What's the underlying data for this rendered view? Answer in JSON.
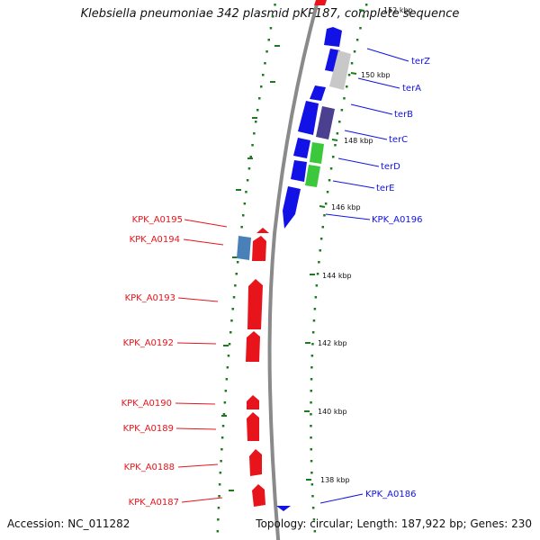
{
  "title": "Klebsiella pneumoniae 342 plasmid pKP187, complete sequence",
  "footer": {
    "accession": "Accession: NC_011282",
    "summary": "Topology: circular; Length: 187,922 bp; Genes: 230"
  },
  "colors": {
    "forward_gene": "#e8141b",
    "reverse_gene": "#1212e6",
    "backbone": "#8a8a8a",
    "gc_dots": "#1e7a1e",
    "grey_feature": "#c8c8c8",
    "purple_feature": "#4b3f8f",
    "green_feature": "#3cc83c",
    "steel_feature": "#4a80b8"
  },
  "ruler": {
    "ticks": [
      {
        "label": "152 kbp"
      },
      {
        "label": "150 kbp"
      },
      {
        "label": "148 kbp"
      },
      {
        "label": "146 kbp"
      },
      {
        "label": "144 kbp"
      },
      {
        "label": "142 kbp"
      },
      {
        "label": "140 kbp"
      },
      {
        "label": "138 kbp"
      }
    ]
  },
  "forward_labels": [
    {
      "text": "terZ"
    },
    {
      "text": "terA"
    },
    {
      "text": "terB"
    },
    {
      "text": "terC"
    },
    {
      "text": "terD"
    },
    {
      "text": "terE"
    },
    {
      "text": "KPK_A0196"
    },
    {
      "text": "KPK_A0186"
    }
  ],
  "reverse_labels": [
    {
      "text": "KPK_A0195"
    },
    {
      "text": "KPK_A0194"
    },
    {
      "text": "KPK_A0193"
    },
    {
      "text": "KPK_A0192"
    },
    {
      "text": "KPK_A0190"
    },
    {
      "text": "KPK_A0189"
    },
    {
      "text": "KPK_A0188"
    },
    {
      "text": "KPK_A0187"
    }
  ]
}
